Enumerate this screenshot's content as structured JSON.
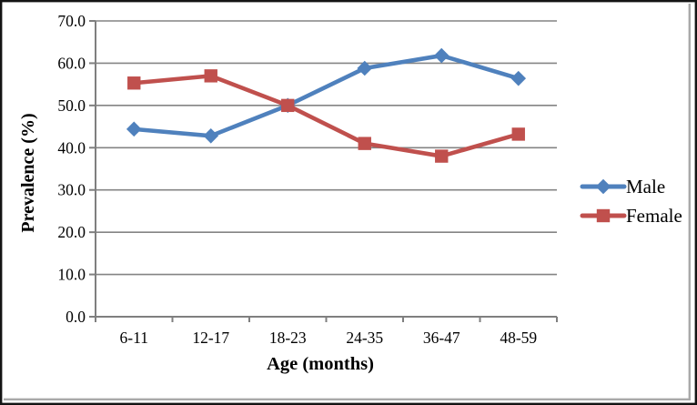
{
  "figure": {
    "background": "#ffffff",
    "outer_border_color": "#141414",
    "inner_shadow_color": "#a9a9a9"
  },
  "chart_data": {
    "type": "line",
    "title": "",
    "xlabel": "Age (months)",
    "ylabel": "Prevalence (%)",
    "categories": [
      "6-11",
      "12-17",
      "18-23",
      "24-35",
      "36-47",
      "48-59"
    ],
    "series": [
      {
        "name": "Male",
        "color": "#4F81BD",
        "marker": "diamond",
        "values": [
          44.4,
          42.8,
          50.0,
          58.8,
          61.8,
          56.4
        ]
      },
      {
        "name": "Female",
        "color": "#C0504D",
        "marker": "square",
        "values": [
          55.3,
          57.0,
          50.0,
          41.0,
          38.0,
          43.2
        ]
      }
    ],
    "ylim": [
      0,
      70
    ],
    "yticks": [
      0,
      10,
      20,
      30,
      40,
      50,
      60,
      70
    ],
    "ytick_labels": [
      "0.0",
      "10.0",
      "20.0",
      "30.0",
      "40.0",
      "50.0",
      "60.0",
      "70.0"
    ],
    "grid": true,
    "gridline_color": "#848484",
    "axis_color": "#7f7f7f",
    "legend_position": "right",
    "legend": [
      "Male",
      "Female"
    ]
  }
}
